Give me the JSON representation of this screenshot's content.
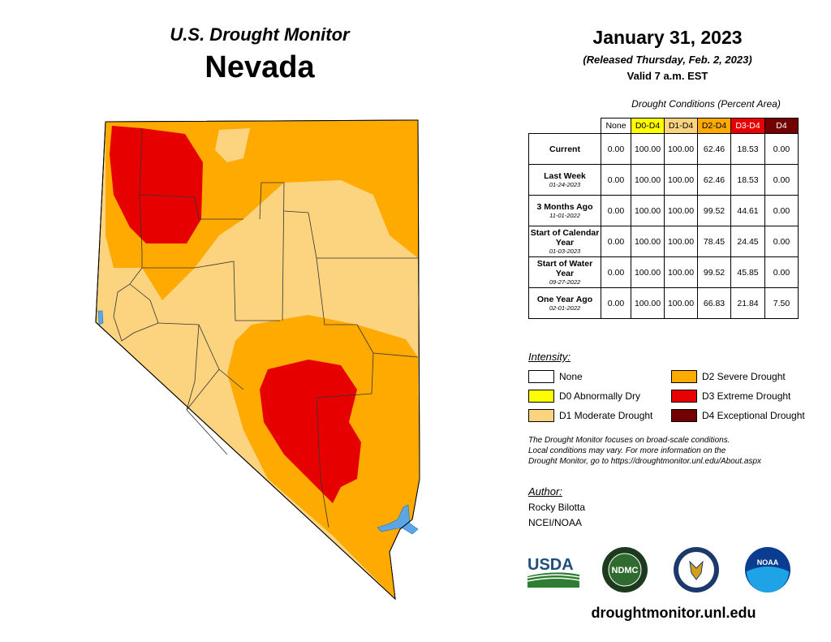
{
  "header": {
    "monitor_title": "U.S. Drought Monitor",
    "state": "Nevada",
    "date": "January 31, 2023",
    "released": "(Released Thursday, Feb. 2, 2023)",
    "valid": "Valid 7 a.m. EST"
  },
  "table": {
    "caption": "Drought Conditions (Percent Area)",
    "columns": [
      "None",
      "D0-D4",
      "D1-D4",
      "D2-D4",
      "D3-D4",
      "D4"
    ],
    "rows": [
      {
        "label": "Current",
        "sub": "",
        "values": [
          "0.00",
          "100.00",
          "100.00",
          "62.46",
          "18.53",
          "0.00"
        ]
      },
      {
        "label": "Last Week",
        "sub": "01-24-2023",
        "values": [
          "0.00",
          "100.00",
          "100.00",
          "62.46",
          "18.53",
          "0.00"
        ]
      },
      {
        "label": "3 Months Ago",
        "sub": "11-01-2022",
        "values": [
          "0.00",
          "100.00",
          "100.00",
          "99.52",
          "44.61",
          "0.00"
        ]
      },
      {
        "label": "Start of Calendar Year",
        "sub": "01-03-2023",
        "values": [
          "0.00",
          "100.00",
          "100.00",
          "78.45",
          "24.45",
          "0.00"
        ]
      },
      {
        "label": "Start of Water Year",
        "sub": "09-27-2022",
        "values": [
          "0.00",
          "100.00",
          "100.00",
          "99.52",
          "45.85",
          "0.00"
        ]
      },
      {
        "label": "One Year Ago",
        "sub": "02-01-2022",
        "values": [
          "0.00",
          "100.00",
          "100.00",
          "66.83",
          "21.84",
          "7.50"
        ]
      }
    ]
  },
  "legend": {
    "title": "Intensity:",
    "items": [
      {
        "label": "None",
        "color": "#ffffff"
      },
      {
        "label": "D0 Abnormally Dry",
        "color": "#ffff00"
      },
      {
        "label": "D1 Moderate Drought",
        "color": "#fcd37f"
      },
      {
        "label": "D2 Severe Drought",
        "color": "#ffaa00"
      },
      {
        "label": "D3 Extreme Drought",
        "color": "#e60000"
      },
      {
        "label": "D4 Exceptional Drought",
        "color": "#730000"
      }
    ]
  },
  "note": {
    "line1": "The Drought Monitor focuses on broad-scale conditions.",
    "line2": "Local conditions may vary. For more information on the",
    "line3": "Drought Monitor, go to https://droughtmonitor.unl.edu/About.aspx"
  },
  "author": {
    "title": "Author:",
    "name": "Rocky Bilotta",
    "org": "NCEI/NOAA"
  },
  "logos": {
    "usda": "USDA",
    "ndmc": "NDMC",
    "noaa": "NOAA"
  },
  "site": "droughtmonitor.unl.edu"
}
